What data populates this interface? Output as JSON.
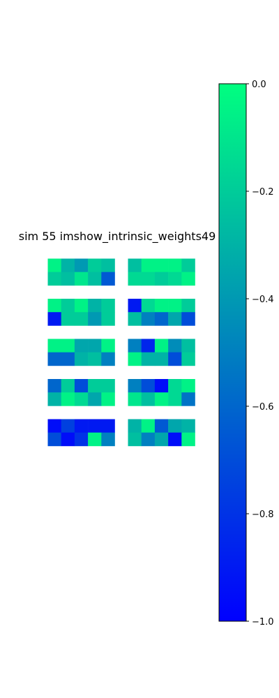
{
  "chart_data": {
    "type": "heatmap",
    "title": "sim 55 imshow_intrinsic_weights49",
    "colormap": "winter",
    "colors": {
      "min": "#0000ff",
      "max": "#00ff80"
    },
    "value_range": [
      -1.0,
      0.0
    ],
    "colorbar": {
      "ticks": [
        0.0,
        -0.2,
        -0.4,
        -0.6,
        -0.8,
        -1.0
      ],
      "tick_labels": [
        "0.0",
        "−0.2",
        "−0.4",
        "−0.6",
        "−0.8",
        "−1.0"
      ],
      "placement": "right"
    },
    "grid": false,
    "panel_layout": {
      "rows": 5,
      "cols": 2
    },
    "panels": [
      {
        "values": [
          [
            -0.05,
            -0.3,
            -0.4,
            -0.2,
            -0.25
          ],
          [
            -0.2,
            -0.25,
            -0.1,
            -0.25,
            -0.65
          ]
        ]
      },
      {
        "values": [
          [
            -0.25,
            -0.05,
            -0.05,
            -0.05,
            -0.2
          ],
          [
            -0.15,
            -0.15,
            -0.2,
            -0.15,
            -0.05
          ]
        ]
      },
      {
        "values": [
          [
            -0.05,
            -0.2,
            -0.05,
            -0.3,
            -0.2
          ],
          [
            -0.9,
            -0.2,
            -0.2,
            -0.4,
            -0.2
          ]
        ]
      },
      {
        "values": [
          [
            -0.9,
            -0.15,
            -0.05,
            -0.05,
            -0.2
          ],
          [
            -0.25,
            -0.5,
            -0.6,
            -0.35,
            -0.7
          ]
        ]
      },
      {
        "values": [
          [
            -0.05,
            -0.05,
            -0.35,
            -0.35,
            -0.05
          ],
          [
            -0.6,
            -0.6,
            -0.3,
            -0.25,
            -0.5
          ]
        ]
      },
      {
        "values": [
          [
            -0.5,
            -0.85,
            -0.05,
            -0.45,
            -0.25
          ],
          [
            -0.05,
            -0.3,
            -0.3,
            -0.7,
            -0.2
          ]
        ]
      },
      {
        "values": [
          [
            -0.6,
            -0.2,
            -0.7,
            -0.2,
            -0.2
          ],
          [
            -0.3,
            -0.05,
            -0.15,
            -0.35,
            -0.05
          ]
        ]
      },
      {
        "values": [
          [
            -0.5,
            -0.7,
            -0.95,
            -0.15,
            -0.05
          ],
          [
            -0.1,
            -0.25,
            -0.05,
            -0.15,
            -0.55
          ]
        ]
      },
      {
        "values": [
          [
            -0.95,
            -0.75,
            -0.9,
            -0.9,
            -0.9
          ],
          [
            -0.7,
            -0.95,
            -0.8,
            -0.05,
            -0.5
          ]
        ]
      },
      {
        "values": [
          [
            -0.3,
            -0.05,
            -0.65,
            -0.35,
            -0.3
          ],
          [
            -0.25,
            -0.5,
            -0.35,
            -0.95,
            -0.05
          ]
        ]
      }
    ]
  }
}
